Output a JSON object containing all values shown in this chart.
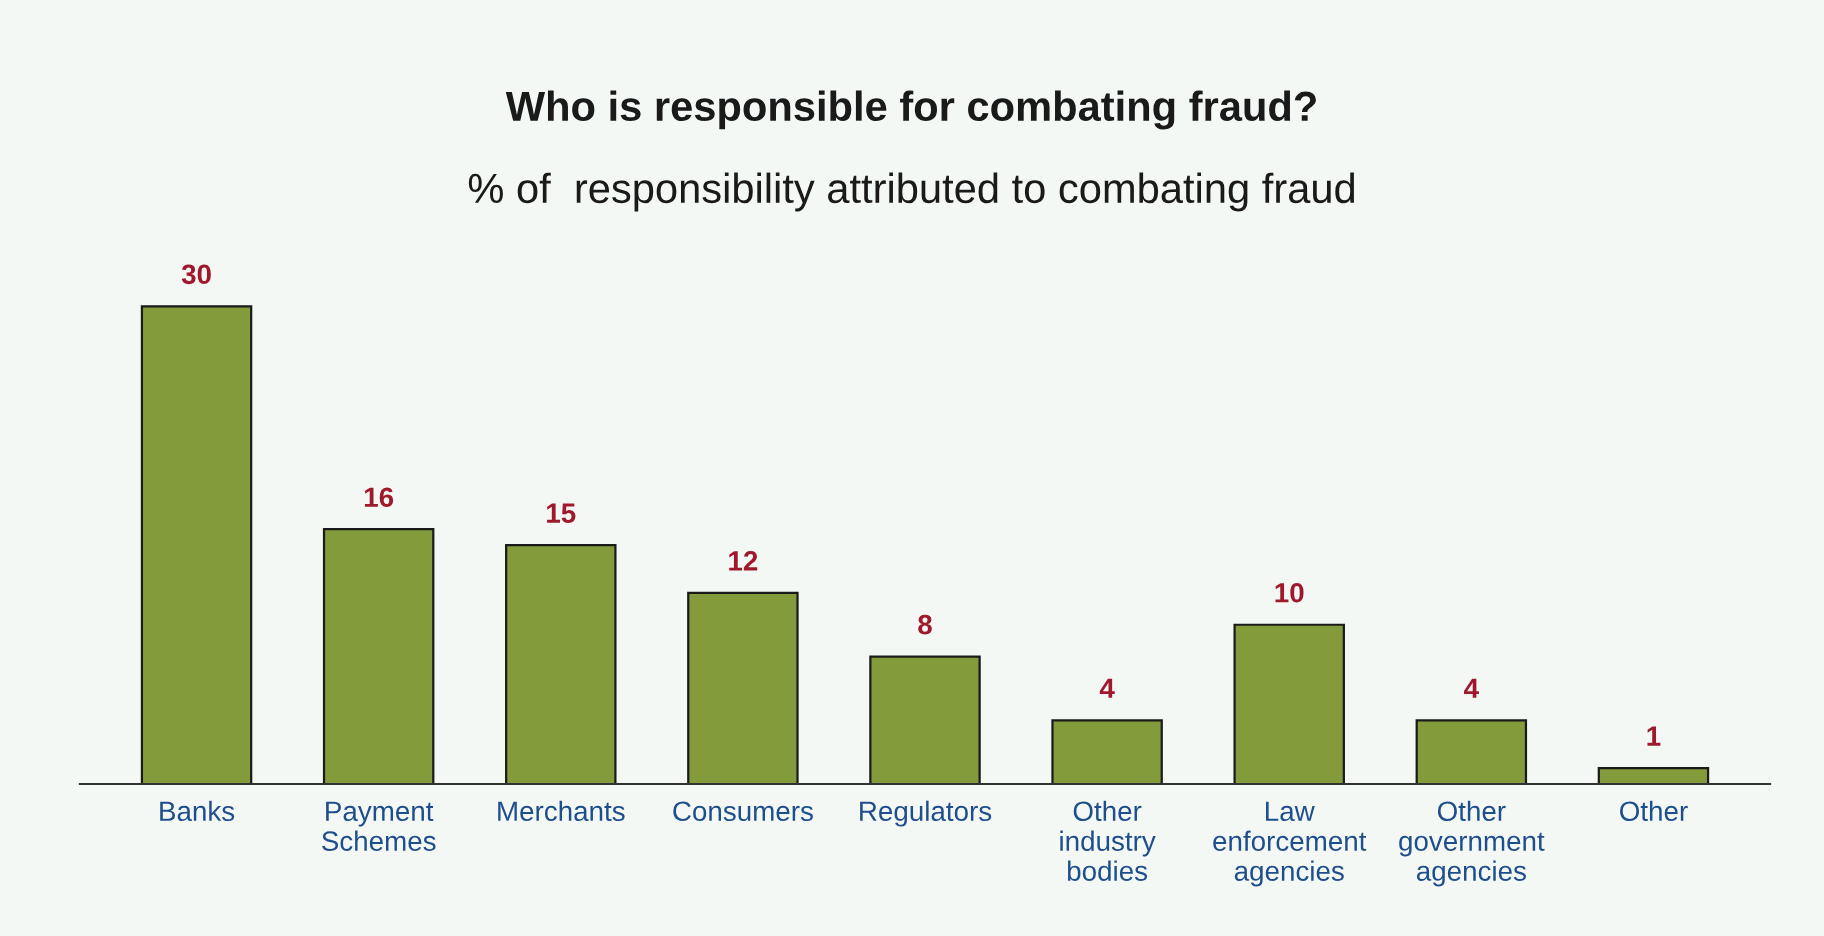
{
  "chart_data": {
    "type": "bar",
    "title": "Who is responsible for combating fraud?",
    "subtitle": "% of  responsibility attributed to combating fraud",
    "categories": [
      "Banks",
      "Payment\nSchemes",
      "Merchants",
      "Consumers",
      "Regulators",
      "Other\nindustry\nbodies",
      "Law\nenforcement\nagencies",
      "Other\ngovernment\nagencies",
      "Other"
    ],
    "values": [
      30,
      16,
      15,
      12,
      8,
      4,
      10,
      4,
      1
    ],
    "color": "#849b3c",
    "data_labels": true,
    "grid": false,
    "legend": false,
    "tick_labels": "x"
  }
}
